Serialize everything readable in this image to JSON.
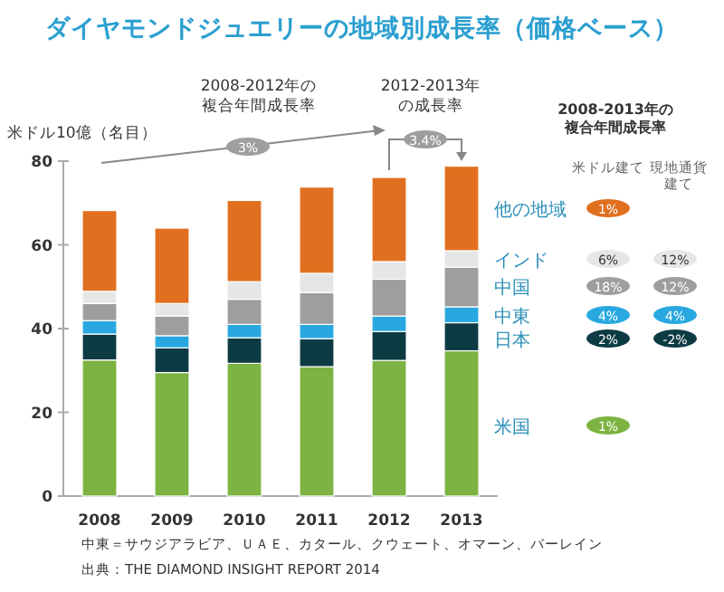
{
  "chart_data": {
    "type": "bar",
    "stacked": true,
    "title": "ダイヤモンドジュエリーの地域別成長率（価格ベース）",
    "ylabel": "米ドル10億（名目）",
    "categories": [
      "2008",
      "2009",
      "2010",
      "2011",
      "2012",
      "2013"
    ],
    "series": [
      {
        "name": "米国",
        "color": "#7cb342",
        "values": [
          32.5,
          29.5,
          31.7,
          30.9,
          32.4,
          34.7
        ]
      },
      {
        "name": "日本",
        "color": "#0d3b44",
        "values": [
          6.2,
          5.9,
          6.1,
          6.7,
          6.9,
          6.7
        ]
      },
      {
        "name": "中東",
        "color": "#29a8e0",
        "values": [
          3.2,
          2.9,
          3.2,
          3.4,
          3.7,
          3.8
        ]
      },
      {
        "name": "中国",
        "color": "#9e9e9e",
        "values": [
          4.1,
          4.7,
          6.0,
          7.6,
          8.8,
          9.5
        ]
      },
      {
        "name": "インド",
        "color": "#e6e6e6",
        "values": [
          2.9,
          3.0,
          4.2,
          4.6,
          4.2,
          3.9
        ]
      },
      {
        "name": "他の地域",
        "color": "#e07020",
        "values": [
          19.3,
          18.0,
          19.4,
          20.6,
          20.1,
          20.2
        ]
      }
    ],
    "ylim": [
      0,
      80
    ],
    "yticks": [
      0,
      20,
      40,
      60,
      80
    ],
    "legend": "right",
    "annotations": [
      "2008-2012年の",
      "複合年間成長率",
      "3%",
      "2012-2013年",
      "の成長率",
      "3.4%",
      "2008-2013年の",
      "複合年間成長率",
      "米ドル建て",
      "現地通貨",
      "建て",
      "1%",
      "6%",
      "12%",
      "18%",
      "12%",
      "4%",
      "4%",
      "2%",
      "-2%",
      "1%",
      "中東＝サウジアラビア、ＵＡＥ、カタール、クウェート、オマーン、バーレイン",
      "出典：THE DIAMOND INSIGHT REPORT 2014"
    ]
  }
}
